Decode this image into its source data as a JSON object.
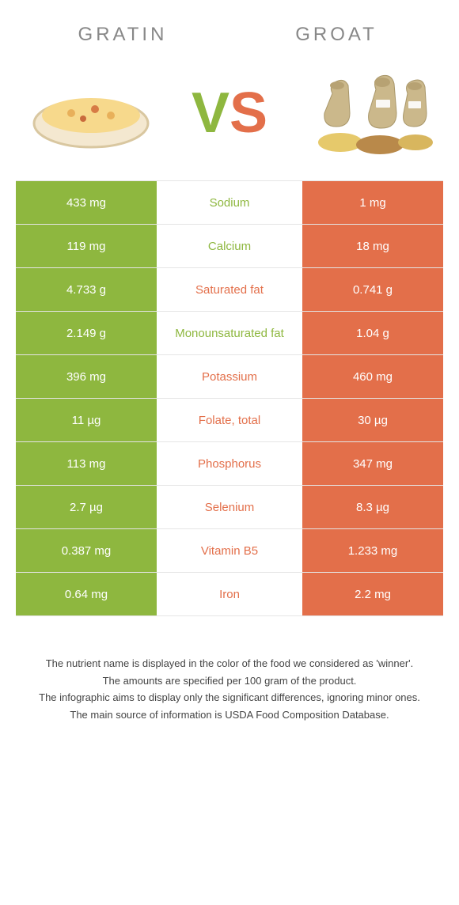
{
  "header": {
    "left": "GRATIN",
    "right": "GROAT"
  },
  "vs": {
    "v": "V",
    "s": "S"
  },
  "colors": {
    "green": "#8eb73f",
    "orange": "#e36f4a",
    "title_grey": "#888888",
    "border": "#e5e5e5",
    "background": "#ffffff"
  },
  "table": {
    "left_bg": "#8eb73f",
    "right_bg": "#e36f4a",
    "rows": [
      {
        "left": "433 mg",
        "mid": "Sodium",
        "winner": "green",
        "right": "1 mg"
      },
      {
        "left": "119 mg",
        "mid": "Calcium",
        "winner": "green",
        "right": "18 mg"
      },
      {
        "left": "4.733 g",
        "mid": "Saturated fat",
        "winner": "orange",
        "right": "0.741 g"
      },
      {
        "left": "2.149 g",
        "mid": "Monounsaturated fat",
        "winner": "green",
        "right": "1.04 g"
      },
      {
        "left": "396 mg",
        "mid": "Potassium",
        "winner": "orange",
        "right": "460 mg"
      },
      {
        "left": "11 µg",
        "mid": "Folate, total",
        "winner": "orange",
        "right": "30 µg"
      },
      {
        "left": "113 mg",
        "mid": "Phosphorus",
        "winner": "orange",
        "right": "347 mg"
      },
      {
        "left": "2.7 µg",
        "mid": "Selenium",
        "winner": "orange",
        "right": "8.3 µg"
      },
      {
        "left": "0.387 mg",
        "mid": "Vitamin B5",
        "winner": "orange",
        "right": "1.233 mg"
      },
      {
        "left": "0.64 mg",
        "mid": "Iron",
        "winner": "orange",
        "right": "2.2 mg"
      }
    ]
  },
  "footer": {
    "line1": "The nutrient name is displayed in the color of the food we considered as 'winner'.",
    "line2": "The amounts are specified per 100 gram of the product.",
    "line3": "The infographic aims to display only the significant differences, ignoring minor ones.",
    "line4": "The main source of information is USDA Food Composition Database."
  }
}
